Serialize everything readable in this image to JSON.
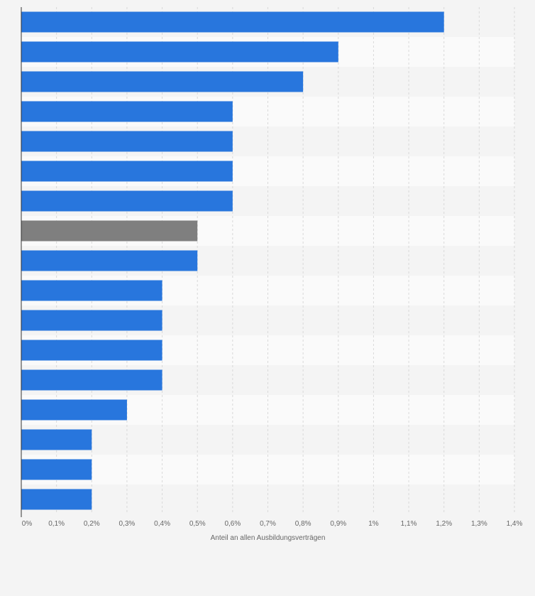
{
  "chart_data": {
    "type": "bar",
    "orientation": "horizontal",
    "xlabel": "Anteil an allen Ausbildungsverträgen",
    "xlim": [
      0,
      1.4
    ],
    "x_ticks": [
      0,
      0.1,
      0.2,
      0.3,
      0.4,
      0.5,
      0.6,
      0.7,
      0.8,
      0.9,
      1.0,
      1.1,
      1.2,
      1.3,
      1.4
    ],
    "x_tick_labels": [
      "0%",
      "0,1%",
      "0,2%",
      "0,3%",
      "0,4%",
      "0,5%",
      "0,6%",
      "0,7%",
      "0,8%",
      "0,9%",
      "1%",
      "1,1%",
      "1,2%",
      "1,3%",
      "1,4%"
    ],
    "grid": true,
    "values": [
      1.2,
      0.9,
      0.8,
      0.6,
      0.6,
      0.6,
      0.6,
      0.5,
      0.5,
      0.4,
      0.4,
      0.4,
      0.4,
      0.3,
      0.2,
      0.2,
      0.2
    ],
    "highlight_index": 7,
    "colors": {
      "bar": "#2876dd",
      "highlight": "#7f7f7f",
      "background": "#f4f4f4",
      "row_alt": "#fafafa",
      "grid": "#d9d9d9",
      "axis": "#333333",
      "text": "#666666"
    }
  }
}
